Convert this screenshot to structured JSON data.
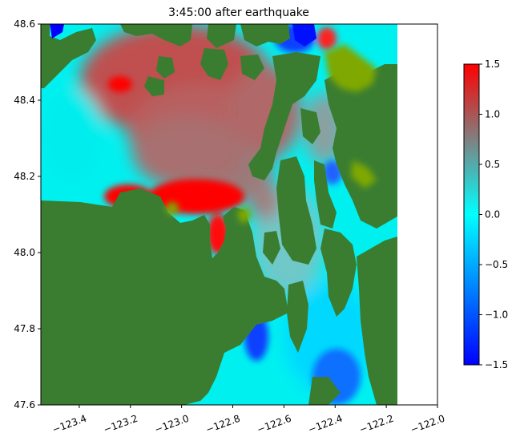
{
  "chart_data": {
    "type": "heatmap",
    "title": "3:45:00 after earthquake",
    "xlabel": "",
    "ylabel": "",
    "xlim": [
      -123.55,
      -122.0
    ],
    "ylim": [
      47.6,
      48.6
    ],
    "xticks": [
      -123.4,
      -123.2,
      -123.0,
      -122.8,
      -122.6,
      -122.4,
      -122.2,
      -122.0
    ],
    "xtick_labels": [
      "−123.4",
      "−123.2",
      "−123.0",
      "−122.8",
      "−122.6",
      "−122.4",
      "−122.2",
      "−122.0"
    ],
    "yticks": [
      47.6,
      47.8,
      48.0,
      48.2,
      48.4,
      48.6
    ],
    "ytick_labels": [
      "47.6",
      "47.8",
      "48.0",
      "48.2",
      "48.4",
      "48.6"
    ],
    "data_extent_x": [
      -123.55,
      -122.16
    ],
    "colorbar": {
      "range": [
        -1.5,
        1.5
      ],
      "ticks": [
        -1.5,
        -1.0,
        -0.5,
        0.0,
        0.5,
        1.0,
        1.5
      ],
      "tick_labels": [
        "−1.5",
        "−1.0",
        "−0.5",
        "0.0",
        "0.5",
        "1.0",
        "1.5"
      ],
      "colors": [
        {
          "value": -1.5,
          "color": "#0000ff"
        },
        {
          "value": 0.0,
          "color": "#00ffff"
        },
        {
          "value": 0.75,
          "color": "#808080"
        },
        {
          "value": 1.5,
          "color": "#ff0000"
        }
      ]
    },
    "land_color": "#3a7d31",
    "flooded_land_color": "#7fa800",
    "grid": false
  }
}
